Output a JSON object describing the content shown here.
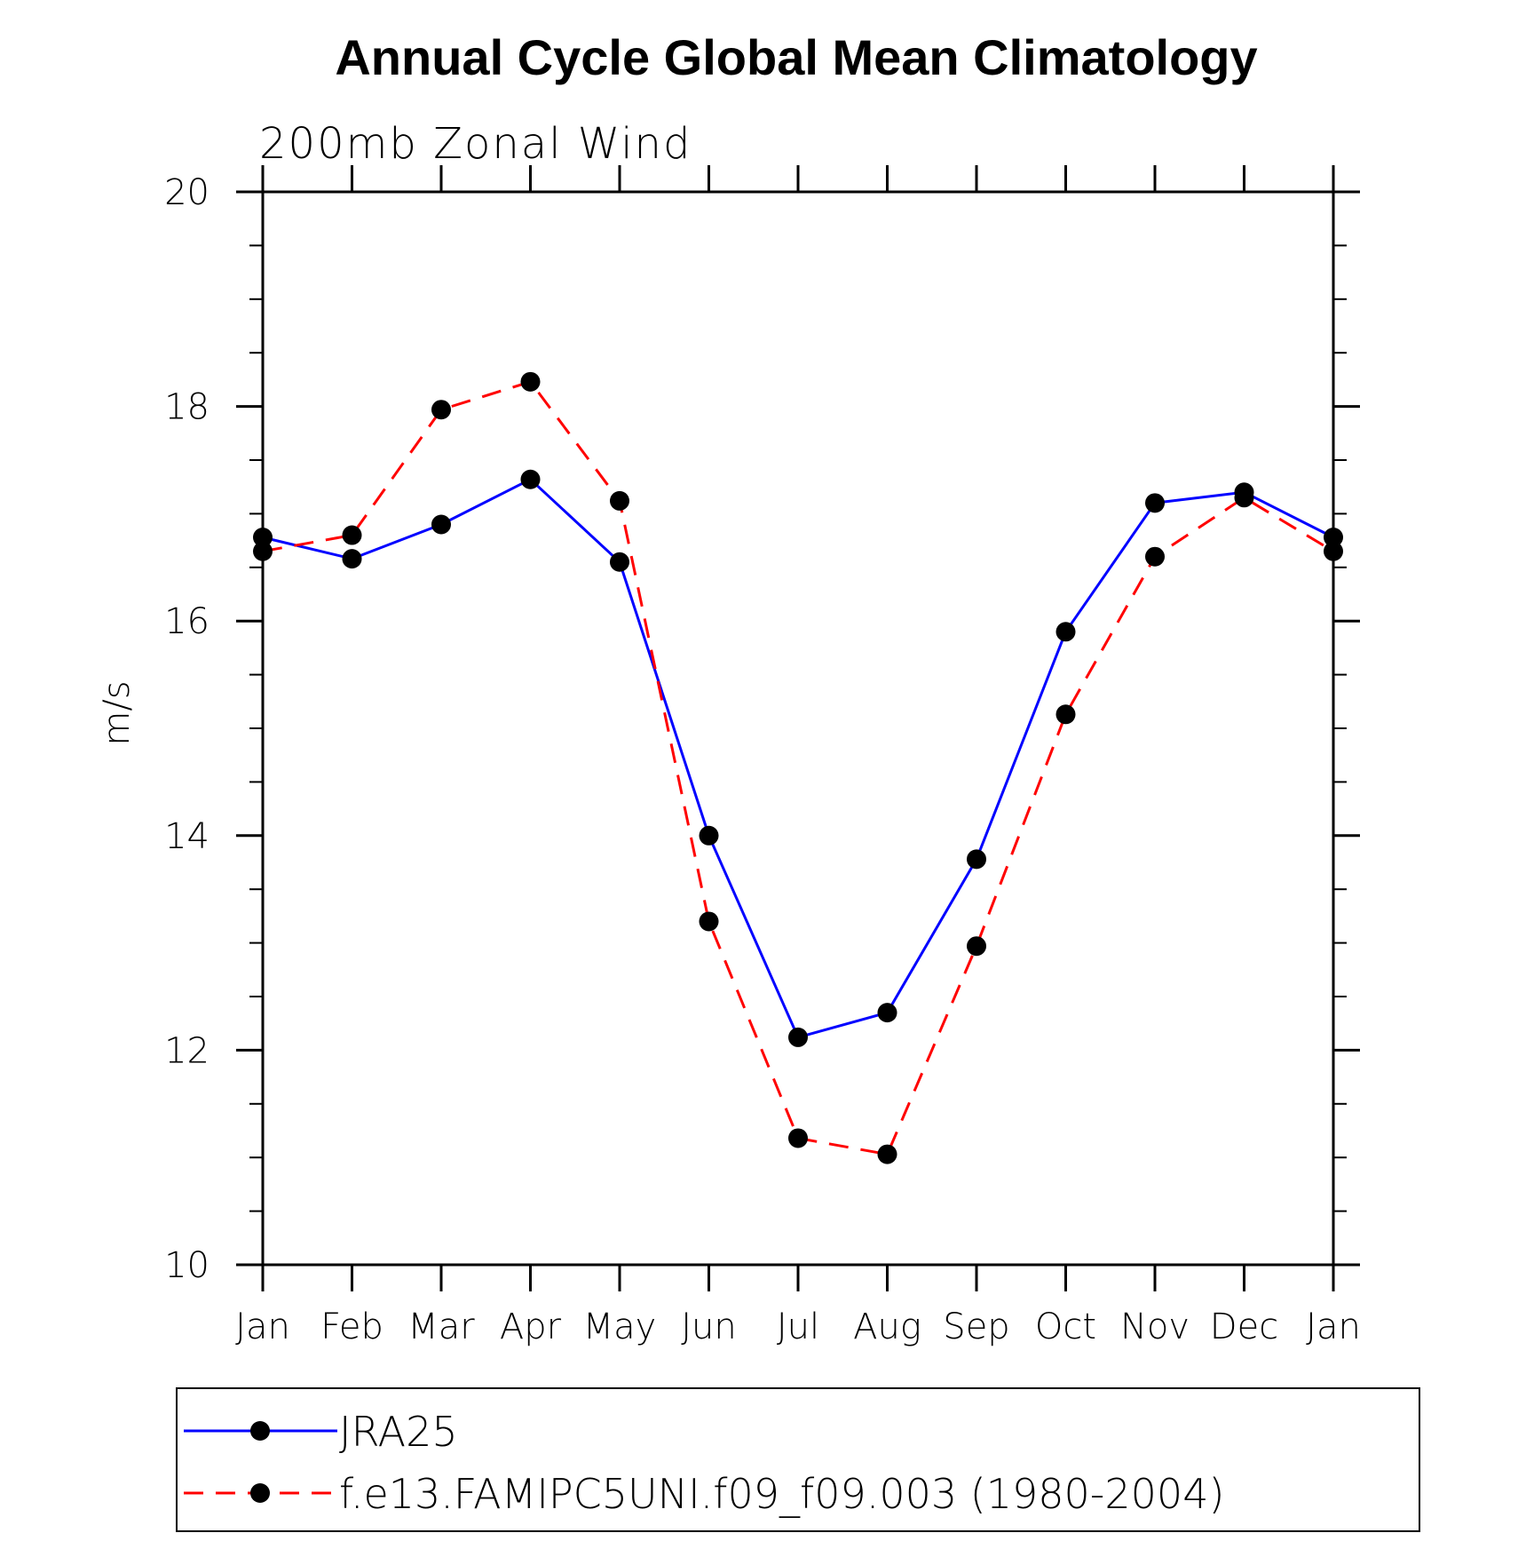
{
  "chart_data": {
    "type": "line",
    "title": "Annual Cycle Global Mean Climatology",
    "subtitle": "200mb Zonal Wind",
    "xlabel": "",
    "ylabel": "m/s",
    "categories": [
      "Jan",
      "Feb",
      "Mar",
      "Apr",
      "May",
      "Jun",
      "Jul",
      "Aug",
      "Sep",
      "Oct",
      "Nov",
      "Dec",
      "Jan"
    ],
    "ylim": [
      10,
      20
    ],
    "yticks": [
      "10",
      "12",
      "14",
      "16",
      "18",
      "20"
    ],
    "grid": false,
    "legend_position": "bottom",
    "series": [
      {
        "name": "JRA25",
        "color": "#0000ff",
        "dash": "solid",
        "marker": "circle",
        "values": [
          16.78,
          16.58,
          16.9,
          17.32,
          16.55,
          14.0,
          12.12,
          12.35,
          13.78,
          15.9,
          17.1,
          17.2,
          16.78
        ]
      },
      {
        "name": "f.e13.FAMIPC5UNI.f09_f09.003 (1980-2004)",
        "color": "#ff0000",
        "dash": "dashed",
        "marker": "circle",
        "values": [
          16.65,
          16.8,
          17.97,
          18.23,
          17.12,
          13.2,
          11.18,
          11.03,
          12.97,
          15.13,
          16.6,
          17.15,
          16.65
        ]
      }
    ]
  }
}
